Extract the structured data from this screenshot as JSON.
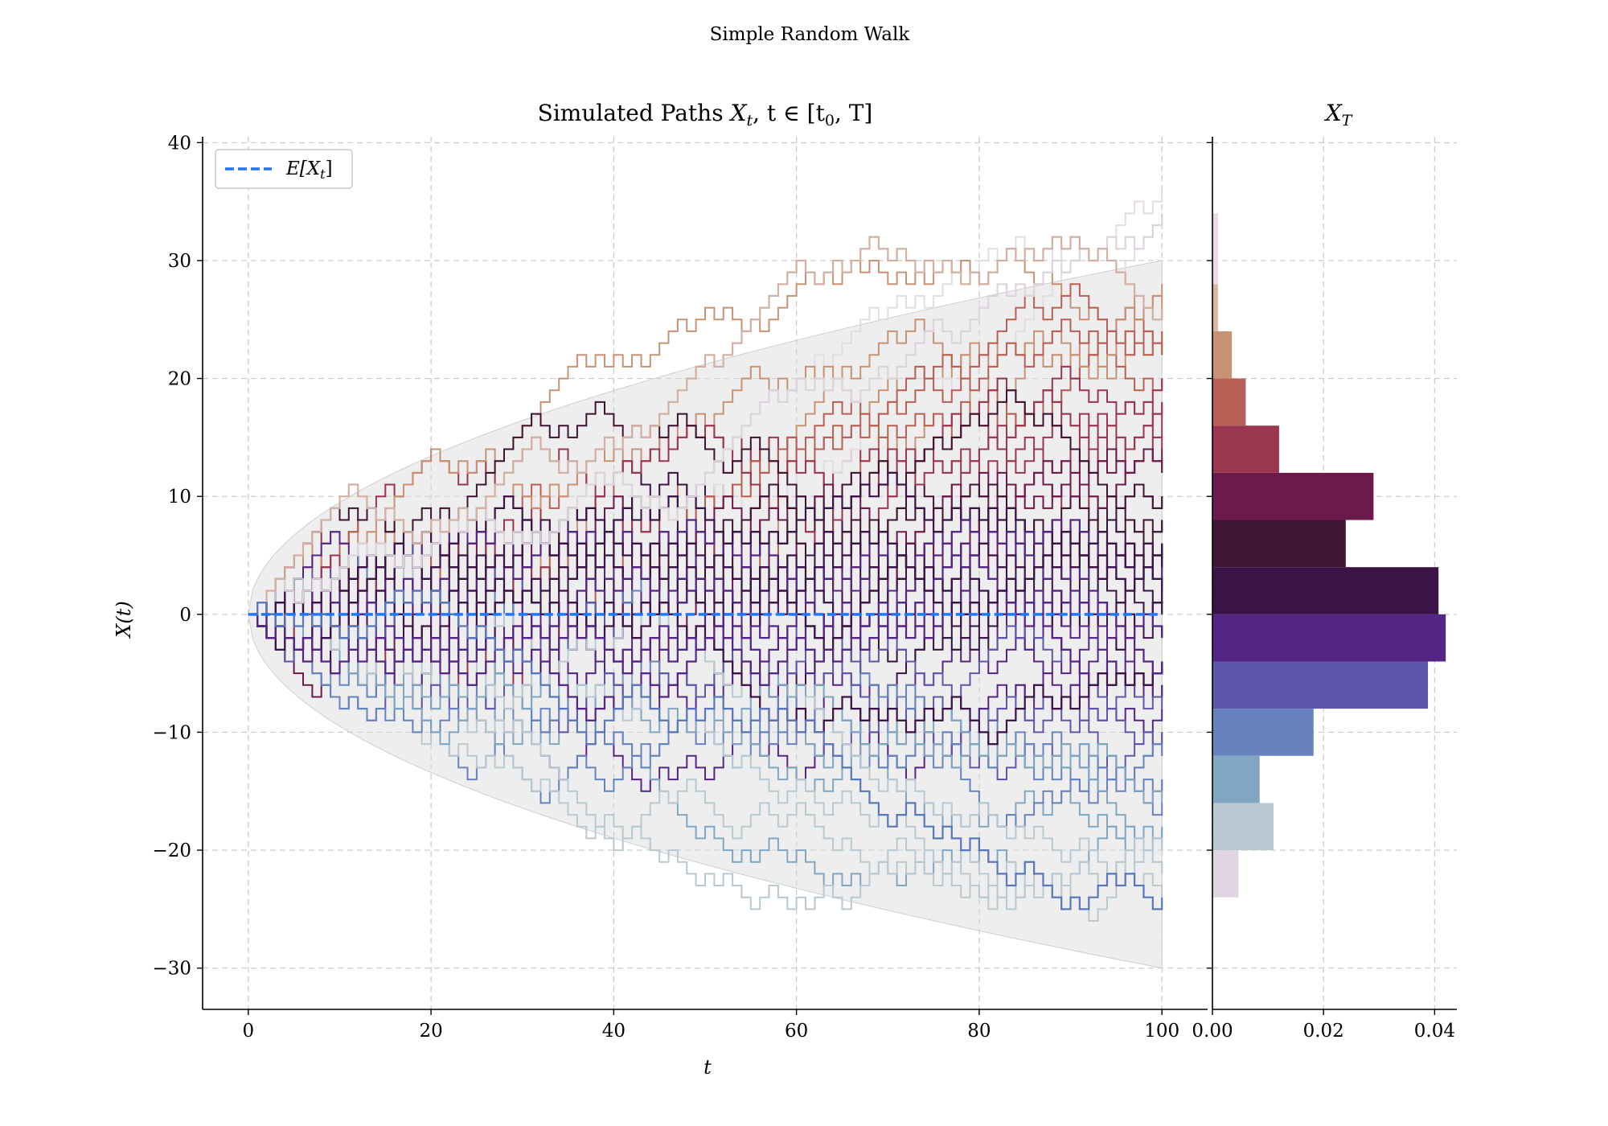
{
  "figure": {
    "suptitle": "Simple Random Walk"
  },
  "chart_data": [
    {
      "type": "line",
      "title": "Simulated Paths X_t, t ∈ [t_0, T]",
      "title_parts": {
        "text": "Simulated Paths ",
        "math": "X",
        "sub1": "t",
        "mid": ", t ∈ [t",
        "sub2": "0",
        "end": ", T]"
      },
      "xlabel": "t",
      "ylabel": "X(t)",
      "xlim": [
        -5,
        105
      ],
      "ylim": [
        -33.5,
        40.5
      ],
      "xticks": [
        0,
        20,
        40,
        60,
        80,
        100
      ],
      "yticks": [
        -30,
        -20,
        -10,
        0,
        10,
        20,
        30,
        40
      ],
      "ytick_labels": [
        "−30",
        "−20",
        "−10",
        "0",
        "10",
        "20",
        "30",
        "40"
      ],
      "grid": true,
      "legend": {
        "placement": "upper-left",
        "entries": [
          {
            "name": "E[X_t]",
            "label_main": "E[X",
            "label_sub": "t",
            "label_end": "]",
            "style": "dashed",
            "color": "#1f77ff"
          }
        ]
      },
      "expectation_line": {
        "y": 0,
        "x": [
          0,
          100
        ]
      },
      "envelope": {
        "formula": "±3·sqrt(t)",
        "x": [
          0,
          100
        ],
        "upper_at_T": 30,
        "lower_at_T": -30
      },
      "steps": 100,
      "paths_final_values": [
        34,
        26,
        24,
        22,
        20,
        18,
        16,
        14,
        12,
        10,
        8,
        6,
        4,
        2,
        0,
        -2,
        -4,
        -6,
        -8,
        -10,
        -12,
        -14,
        -16,
        -18,
        -20,
        -22,
        -24
      ],
      "highlight_paths": [
        {
          "final": 34,
          "peak": 37,
          "color": "#ddd3de"
        },
        {
          "final": 26,
          "peak": 31,
          "color": "#d2b0a4"
        },
        {
          "final": -24,
          "trough": -24,
          "color": "#5a77bd"
        }
      ]
    },
    {
      "type": "bar",
      "orientation": "horizontal",
      "title": "X_T",
      "title_parts": {
        "math": "X",
        "sub": "T"
      },
      "xlim": [
        0,
        0.044
      ],
      "xticks": [
        0.0,
        0.02,
        0.04
      ],
      "xtick_labels": [
        "0.00",
        "0.02",
        "0.04"
      ],
      "bin_width": 4,
      "bins": [
        {
          "y0": -24,
          "y1": -20,
          "value": 0.0047,
          "color": "#e0d6e2"
        },
        {
          "y0": -20,
          "y1": -16,
          "value": 0.011,
          "color": "#b8c9d2"
        },
        {
          "y0": -16,
          "y1": -12,
          "value": 0.0085,
          "color": "#80a6c2"
        },
        {
          "y0": -12,
          "y1": -8,
          "value": 0.0182,
          "color": "#6783bf"
        },
        {
          "y0": -8,
          "y1": -4,
          "value": 0.0388,
          "color": "#5f56ab"
        },
        {
          "y0": -4,
          "y1": 0,
          "value": 0.042,
          "color": "#552586"
        },
        {
          "y0": 0,
          "y1": 4,
          "value": 0.0407,
          "color": "#3b1347"
        },
        {
          "y0": 4,
          "y1": 8,
          "value": 0.024,
          "color": "#401536"
        },
        {
          "y0": 8,
          "y1": 12,
          "value": 0.029,
          "color": "#6c1a4b"
        },
        {
          "y0": 12,
          "y1": 16,
          "value": 0.012,
          "color": "#9b3650"
        },
        {
          "y0": 16,
          "y1": 20,
          "value": 0.006,
          "color": "#b86055"
        },
        {
          "y0": 20,
          "y1": 24,
          "value": 0.0035,
          "color": "#c89274"
        },
        {
          "y0": 24,
          "y1": 28,
          "value": 0.001,
          "color": "#dab7a3"
        },
        {
          "y0": 28,
          "y1": 34,
          "value": 0.001,
          "color": "#e6dbe6"
        }
      ]
    }
  ],
  "palette": {
    "path_colors": [
      "#e5dbe5",
      "#d3b8ae",
      "#c89274",
      "#b86055",
      "#9b3650",
      "#6c1a4b",
      "#3f1332",
      "#33103f",
      "#3b1347",
      "#552586",
      "#5f56ab",
      "#6783bf",
      "#80a6c2",
      "#b8c9d2"
    ],
    "envelope_fill": "#d9d9d9",
    "grid": "#c8c8c8"
  }
}
